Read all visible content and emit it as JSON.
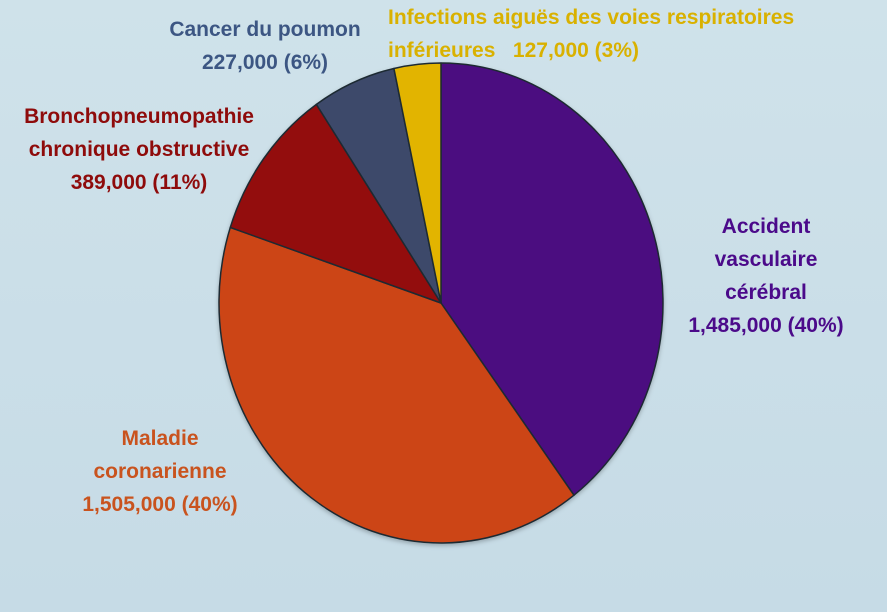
{
  "chart_data": {
    "type": "pie",
    "slices": [
      {
        "key": "avc",
        "label": "Accident vasculaire cérébral",
        "label_lines": [
          "Accident",
          "vasculaire",
          "cérébral"
        ],
        "value": 1485000,
        "value_text": "1,485,000 (40%)",
        "color": "#4c0780"
      },
      {
        "key": "coronary",
        "label": "Maladie coronarienne",
        "label_lines": [
          "Maladie",
          "coronarienne"
        ],
        "value": 1505000,
        "value_text": "1,505,000 (40%)",
        "color": "#cc4416"
      },
      {
        "key": "copd",
        "label": "Bronchopneumopathie chronique obstructive",
        "label_lines": [
          "Bronchopneumopathie",
          "chronique obstructive"
        ],
        "value": 389000,
        "value_text": "389,000 (11%)",
        "color": "#930a0a"
      },
      {
        "key": "lung",
        "label": "Cancer du poumon",
        "label_lines": [
          "Cancer du poumon"
        ],
        "value": 227000,
        "value_text": "227,000 (6%)",
        "color": "#3d4a6b"
      },
      {
        "key": "lri",
        "label": "Infections aiguës des voies respiratoires inférieures",
        "label_lines": [
          "Infections aiguës des voies respiratoires",
          "inférieures"
        ],
        "value": 127000,
        "value_text": "127,000 (3%)",
        "color": "#e2b400"
      }
    ],
    "label_colors": {
      "avc": "#4b0a8a",
      "coronary": "#c9531e",
      "copd": "#8e0b0b",
      "lung": "#3c5683",
      "lri": "#d9b100"
    }
  }
}
